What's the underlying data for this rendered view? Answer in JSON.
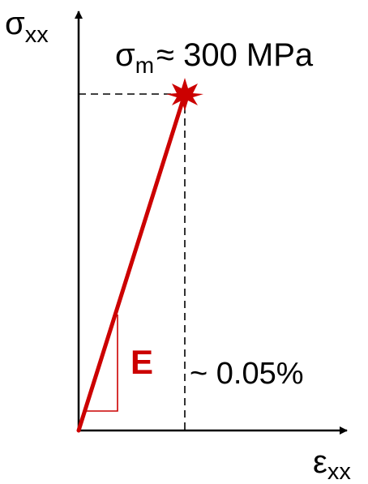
{
  "y_axis": {
    "symbol": "σ",
    "subscript": "xx"
  },
  "x_axis": {
    "symbol": "ε",
    "subscript": "xx"
  },
  "peak": {
    "symbol": "σ",
    "subscript": "m",
    "value_text": "≈ 300 MPa"
  },
  "strain_note": "~ 0.05%",
  "slope_label": "E",
  "colors": {
    "curve": "#cc0000",
    "axes": "#000000",
    "guides": "#000000"
  },
  "chart_data": {
    "type": "line",
    "series": [
      {
        "x": [
          0,
          0.05
        ],
        "y": [
          0,
          300
        ]
      }
    ],
    "annotations": [
      "σm ≈ 300 MPa",
      "~ 0.05%",
      "E"
    ]
  }
}
